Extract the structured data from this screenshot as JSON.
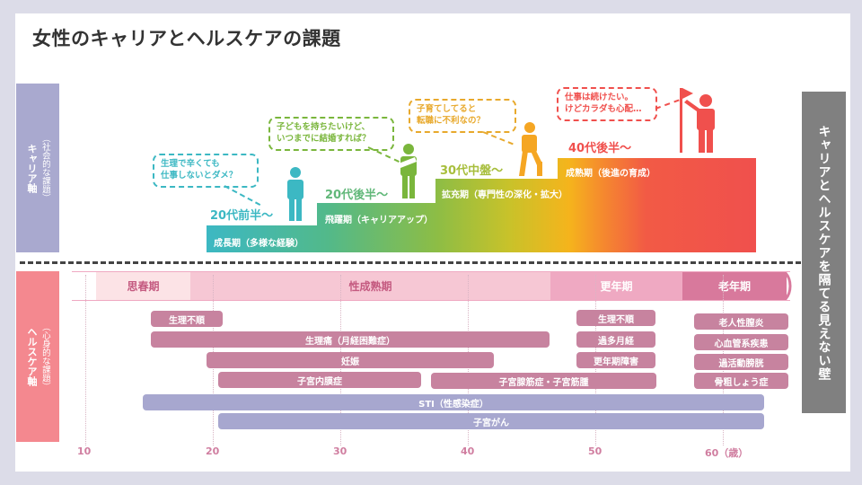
{
  "title": "女性のキャリアとヘルスケアの課題",
  "career_axis": {
    "sub": "（社会的な課題）",
    "main": "キャリア軸"
  },
  "health_axis": {
    "sub": "（心身的な課題）",
    "main": "ヘルスケア軸"
  },
  "wall_label": "キャリアとヘルスケアを隔てる見えない壁",
  "steps": [
    {
      "age": "20代前半〜",
      "label": "成長期（多様な経験）",
      "color": "#3cb8c3"
    },
    {
      "age": "20代後半〜",
      "label": "飛躍期（キャリアアップ）",
      "color": "#62b87a"
    },
    {
      "age": "30代中盤〜",
      "label": "拡充期（専門性の深化・拡大）",
      "color": "#a7be3c"
    },
    {
      "age": "40代後半〜",
      "label": "成熟期（後進の育成）",
      "color": "#f0504d"
    }
  ],
  "bubbles": [
    {
      "text1": "生理で辛くても",
      "text2": "仕事しないとダメ？",
      "color": "#3cb8c3"
    },
    {
      "text1": "子どもを持ちたいけど、",
      "text2": "いつまでに結婚すれば？",
      "color": "#7ab63c"
    },
    {
      "text1": "子育てしてると",
      "text2": "転職に不利なの？",
      "color": "#e8a92c"
    },
    {
      "text1": "仕事は続けたい。",
      "text2": "けどカラダも心配…",
      "color": "#f0504d"
    }
  ],
  "phases": [
    {
      "label": "思春期",
      "bg": "#fce3e6",
      "fg": "#c45a80"
    },
    {
      "label": "性成熟期",
      "bg": "#f6c7d4",
      "fg": "#c45a80"
    },
    {
      "label": "更年期",
      "bg": "#efa9c2",
      "fg": "#ffffff"
    },
    {
      "label": "老年期",
      "bg": "#d8799c",
      "fg": "#ffffff"
    }
  ],
  "health_issues": {
    "seiri_fujun_1": "生理不順",
    "seiritsu": "生理痛（月経困難症）",
    "ninshin": "妊娠",
    "naimakusho": "子宮内膜症",
    "senkinsho": "子宮腺筋症・子宮筋腫",
    "seiri_fujun_2": "生理不順",
    "kata_gekkei": "過多月経",
    "konenki_shogai": "更年期障害",
    "chitsuen": "老人性膣炎",
    "shinkekkan": "心血管系疾患",
    "boukou": "過活動膀胱",
    "kotsusosho": "骨粗しょう症",
    "sti": "STI（性感染症）",
    "shikyu_gan": "子宮がん"
  },
  "ticks": [
    "10",
    "20",
    "30",
    "40",
    "50",
    "60（歳）"
  ],
  "colors": {
    "career_axis_bg": "#a9a9cf",
    "health_axis_bg": "#f4888f",
    "wall_bg": "#808080",
    "pink_bar": "#c7839f",
    "purple_bar": "#a7a7cf"
  }
}
